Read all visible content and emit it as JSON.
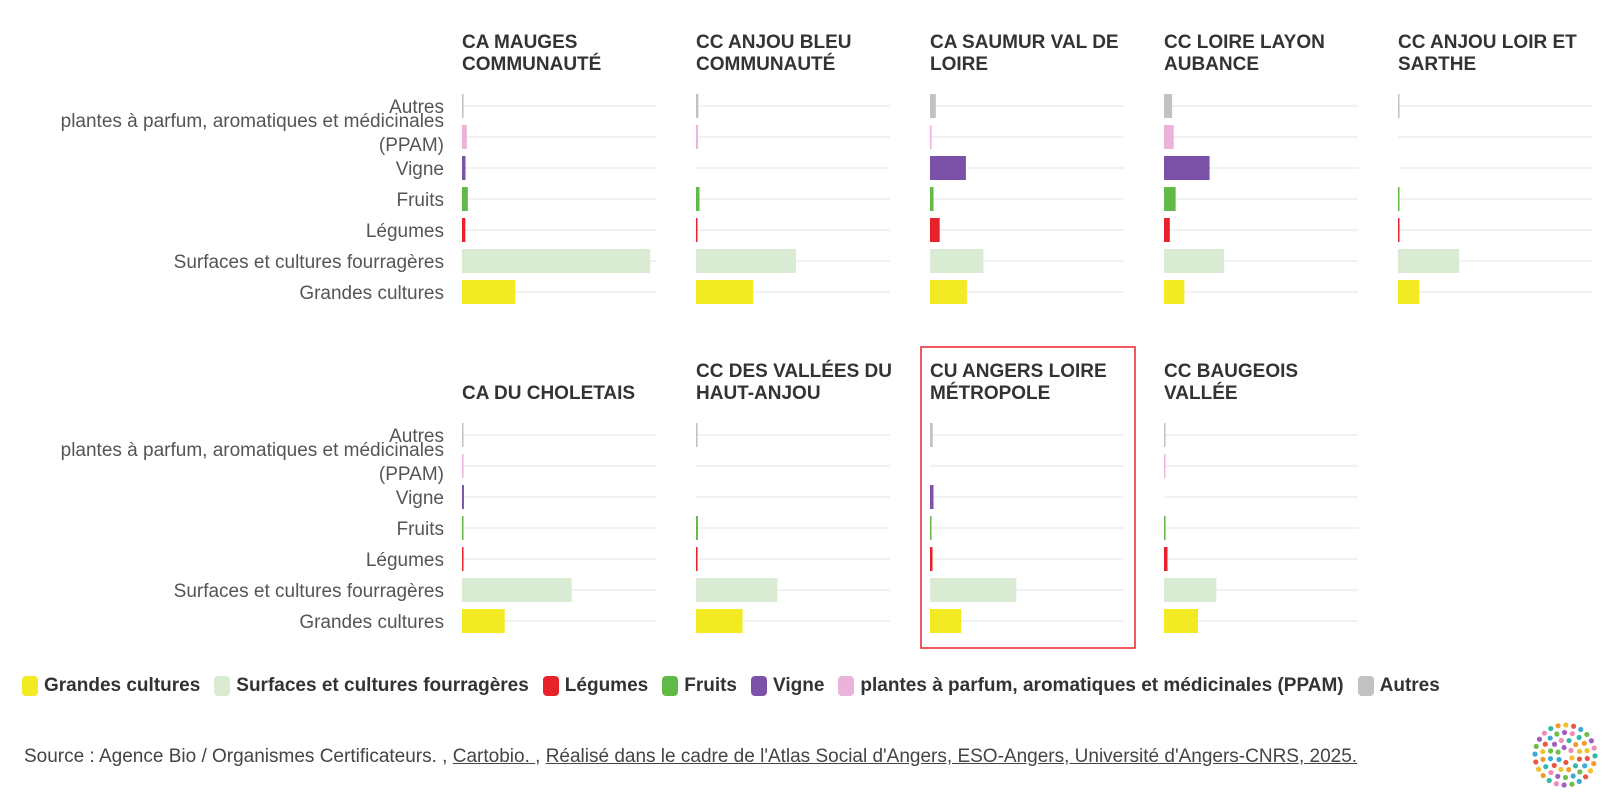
{
  "chart_data": {
    "type": "bar",
    "orientation": "horizontal",
    "unit": "hectares (approx.)",
    "categories": [
      "Autres",
      "plantes à parfum, aromatiques et médicinales (PPAM)",
      "Vigne",
      "Fruits",
      "Légumes",
      "Surfaces et cultures fourragères",
      "Grandes cultures"
    ],
    "category_labels": [
      [
        "Autres"
      ],
      [
        "plantes à parfum, aromatiques et médicinales",
        "(PPAM)"
      ],
      [
        "Vigne"
      ],
      [
        "Fruits"
      ],
      [
        "Légumes"
      ],
      [
        "Surfaces et cultures fourragères"
      ],
      [
        "Grandes cultures"
      ]
    ],
    "xlim": [
      0,
      10000
    ],
    "grid": true,
    "highlighted_panel": "CU ANGERS LOIRE MÉTROPOLE",
    "colors": {
      "Grandes cultures": "#f2ea23",
      "Surfaces et cultures fourragères": "#d9ebd3",
      "Légumes": "#e8222a",
      "Fruits": "#61b946",
      "Vigne": "#7b52a8",
      "plantes à parfum, aromatiques et médicinales (PPAM)": "#e9b4d8",
      "Autres": "#c2c2c2"
    },
    "panels": [
      {
        "title": [
          "CA MAUGES",
          "COMMUNAUTÉ"
        ],
        "values": [
          80,
          250,
          180,
          300,
          170,
          9700,
          2750
        ]
      },
      {
        "title": [
          "CC ANJOU BLEU",
          "COMMUNAUTÉ"
        ],
        "values": [
          120,
          100,
          0,
          180,
          50,
          5150,
          2950
        ]
      },
      {
        "title": [
          "CA SAUMUR VAL DE",
          "LOIRE"
        ],
        "values": [
          300,
          20,
          1850,
          180,
          500,
          2750,
          1900
        ]
      },
      {
        "title": [
          "CC LOIRE LAYON",
          "AUBANCE"
        ],
        "values": [
          420,
          500,
          2350,
          600,
          300,
          3100,
          1050
        ]
      },
      {
        "title": [
          "CC ANJOU LOIR ET",
          "SARTHE"
        ],
        "values": [
          20,
          0,
          0,
          30,
          50,
          3150,
          1100
        ]
      },
      {
        "title": [
          "CA DU CHOLETAIS"
        ],
        "values": [
          50,
          70,
          100,
          10,
          40,
          5650,
          2200
        ]
      },
      {
        "title": [
          "CC DES VALLÉES DU",
          "HAUT-ANJOU"
        ],
        "values": [
          80,
          0,
          0,
          100,
          80,
          4200,
          2400
        ]
      },
      {
        "title": [
          "CU ANGERS LOIRE",
          "MÉTROPOLE"
        ],
        "values": [
          140,
          0,
          180,
          70,
          130,
          4450,
          1600
        ]
      },
      {
        "title": [
          "CC BAUGEOIS",
          "VALLÉE"
        ],
        "values": [
          40,
          20,
          0,
          80,
          180,
          2700,
          1750
        ]
      }
    ]
  },
  "legend": [
    {
      "label": "Grandes cultures",
      "color": "#f2ea23"
    },
    {
      "label": "Surfaces et cultures fourragères",
      "color": "#d9ebd3"
    },
    {
      "label": "Légumes",
      "color": "#e8222a"
    },
    {
      "label": "Fruits",
      "color": "#61b946"
    },
    {
      "label": "Vigne",
      "color": "#7b52a8"
    },
    {
      "label": "plantes à parfum, aromatiques et médicinales (PPAM)",
      "color": "#e9b4d8"
    },
    {
      "label": "Autres",
      "color": "#c2c2c2"
    }
  ],
  "source": {
    "prefix": "Source : Agence Bio / Organismes Certificateurs. , ",
    "link1": "Cartobio. ",
    "separator": ", ",
    "link2": "Réalisé dans le cadre de l'Atlas Social d'Angers, ESO-Angers, Université d'Angers-CNRS, 2025."
  },
  "logo": {
    "name": "atlas-social-logo"
  }
}
